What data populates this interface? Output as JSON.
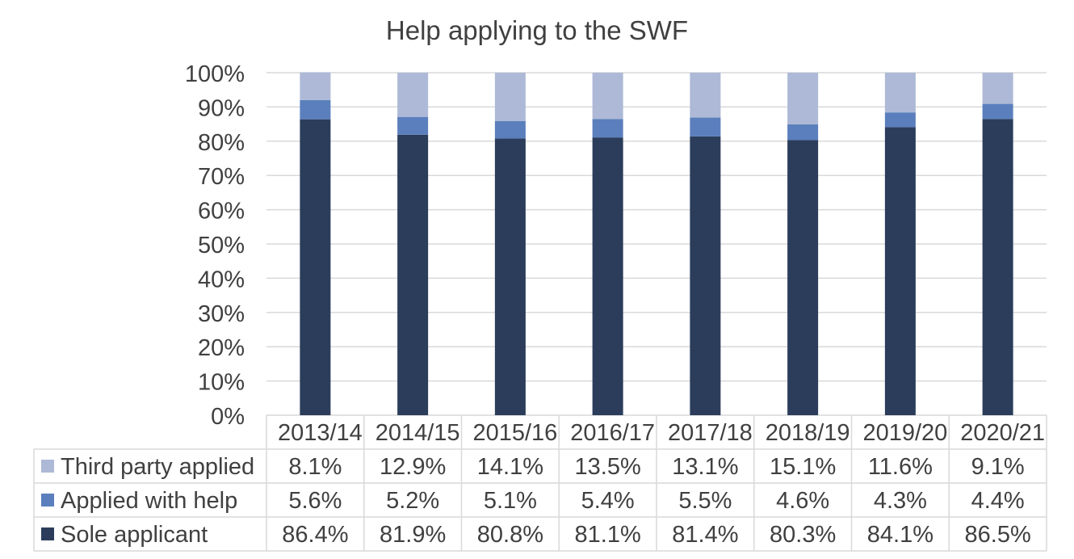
{
  "chart_data": {
    "type": "bar",
    "stacked": true,
    "title": "Help applying to the SWF",
    "categories": [
      "2013/14",
      "2014/15",
      "2015/16",
      "2016/17",
      "2017/18",
      "2018/19",
      "2019/20",
      "2020/21"
    ],
    "series": [
      {
        "name": "Third party applied",
        "color": "#adb9d6",
        "values": [
          8.1,
          12.9,
          14.1,
          13.5,
          13.1,
          15.1,
          11.6,
          9.1
        ],
        "labels": [
          "8.1%",
          "12.9%",
          "14.1%",
          "13.5%",
          "13.1%",
          "15.1%",
          "11.6%",
          "9.1%"
        ]
      },
      {
        "name": "Applied with help",
        "color": "#5b7fbd",
        "values": [
          5.6,
          5.2,
          5.1,
          5.4,
          5.5,
          4.6,
          4.3,
          4.4
        ],
        "labels": [
          "5.6%",
          "5.2%",
          "5.1%",
          "5.4%",
          "5.5%",
          "4.6%",
          "4.3%",
          "4.4%"
        ]
      },
      {
        "name": "Sole applicant",
        "color": "#2b3d5b",
        "values": [
          86.4,
          81.9,
          80.8,
          81.1,
          81.4,
          80.3,
          84.1,
          86.5
        ],
        "labels": [
          "86.4%",
          "81.9%",
          "80.8%",
          "81.1%",
          "81.4%",
          "80.3%",
          "84.1%",
          "86.5%"
        ]
      }
    ],
    "ylim": [
      0,
      100
    ],
    "yticks": [
      "0%",
      "10%",
      "20%",
      "30%",
      "40%",
      "50%",
      "60%",
      "70%",
      "80%",
      "90%",
      "100%"
    ],
    "grid": true,
    "legend": "data-table"
  }
}
